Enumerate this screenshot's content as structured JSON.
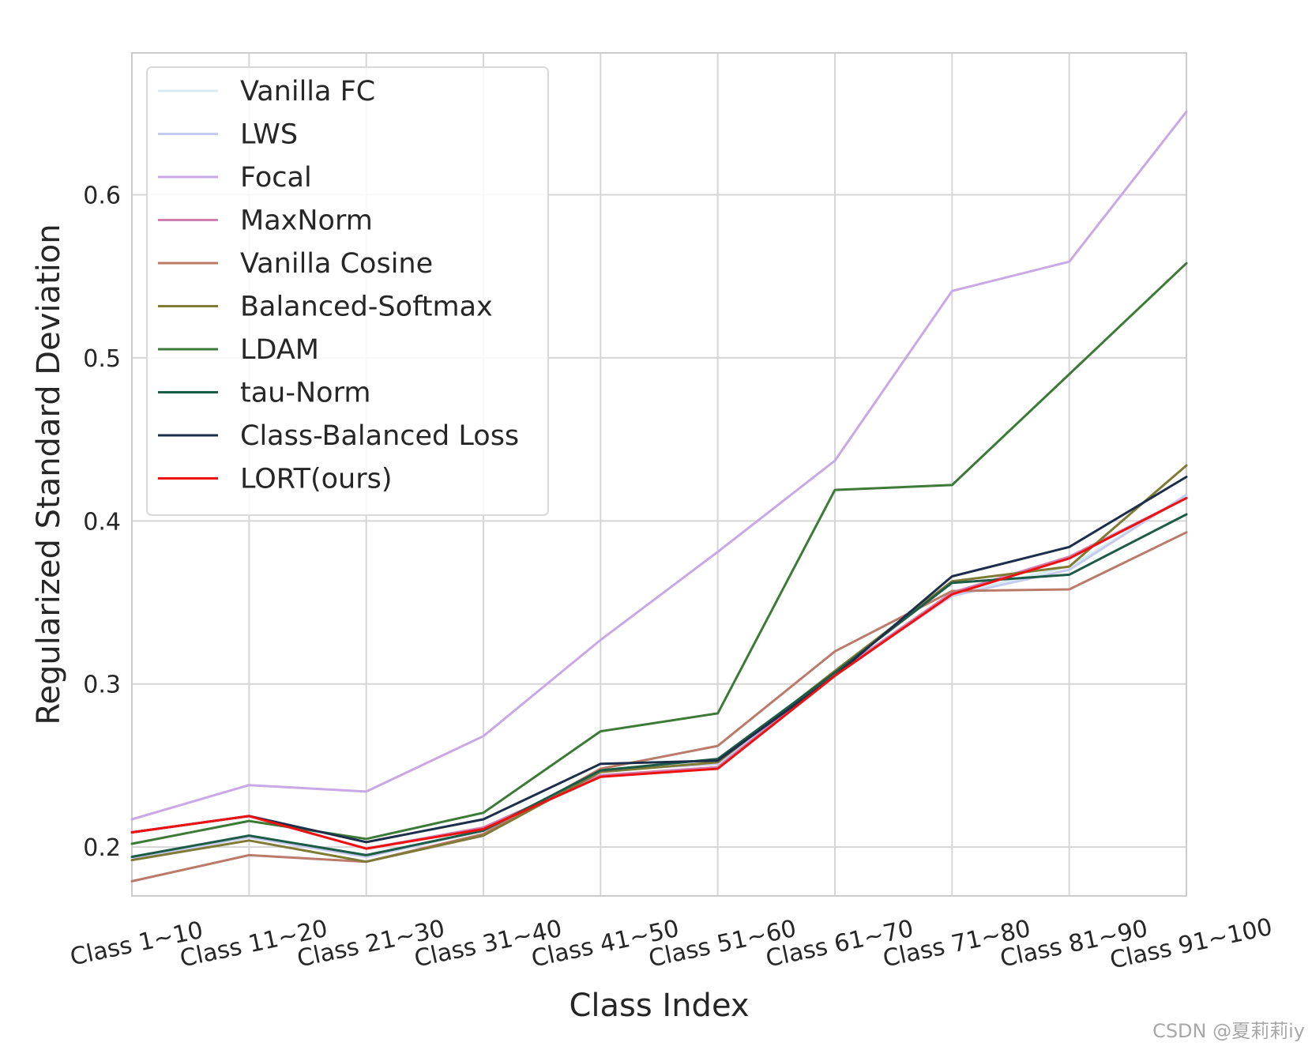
{
  "chart_data": {
    "type": "line",
    "title": "",
    "xlabel": "Class Index",
    "ylabel": "Regularized Standard Deviation",
    "categories": [
      "Class 1~10",
      "Class 11~20",
      "Class 21~30",
      "Class 31~40",
      "Class 41~50",
      "Class 51~60",
      "Class 61~70",
      "Class 71~80",
      "Class 81~90",
      "Class 91~100"
    ],
    "ylim": [
      0.17,
      0.687
    ],
    "yticks": [
      "0.2",
      "0.3",
      "0.4",
      "0.5",
      "0.6"
    ],
    "grid": true,
    "legend_position": "top-left",
    "series": [
      {
        "name": "Vanilla FC",
        "color": "#d6ecf0",
        "values": [
          0.193,
          0.206,
          0.195,
          0.21,
          0.247,
          0.252,
          0.307,
          0.355,
          0.372,
          0.415
        ]
      },
      {
        "name": "LWS",
        "color": "#c5cbf0",
        "values": [
          0.193,
          0.206,
          0.194,
          0.21,
          0.247,
          0.251,
          0.306,
          0.354,
          0.37,
          0.416
        ]
      },
      {
        "name": "Focal",
        "color": "#c9a8e6",
        "values": [
          0.217,
          0.238,
          0.234,
          0.268,
          0.327,
          0.381,
          0.437,
          0.541,
          0.559,
          0.651
        ]
      },
      {
        "name": "MaxNorm",
        "color": "#d080b0",
        "values": [
          0.209,
          0.219,
          0.199,
          0.212,
          0.244,
          0.249,
          0.306,
          0.356,
          0.378,
          0.414
        ]
      },
      {
        "name": "Vanilla Cosine",
        "color": "#bb7b6a",
        "values": [
          0.179,
          0.195,
          0.191,
          0.208,
          0.248,
          0.262,
          0.32,
          0.357,
          0.358,
          0.393
        ]
      },
      {
        "name": "Balanced-Softmax",
        "color": "#7f7a36",
        "values": [
          0.192,
          0.204,
          0.191,
          0.207,
          0.246,
          0.252,
          0.308,
          0.363,
          0.372,
          0.434
        ]
      },
      {
        "name": "LDAM",
        "color": "#3d7a38",
        "values": [
          0.202,
          0.216,
          0.205,
          0.221,
          0.271,
          0.282,
          0.419,
          0.422,
          0.49,
          0.558
        ]
      },
      {
        "name": "tau-Norm",
        "color": "#1c5c46",
        "values": [
          0.194,
          0.207,
          0.195,
          0.21,
          0.247,
          0.254,
          0.307,
          0.362,
          0.367,
          0.404
        ]
      },
      {
        "name": "Class-Balanced Loss",
        "color": "#1c2f4a",
        "values": [
          0.209,
          0.219,
          0.203,
          0.217,
          0.251,
          0.253,
          0.305,
          0.366,
          0.384,
          0.427
        ]
      },
      {
        "name": "LORT(ours)",
        "color": "#ee1111",
        "values": [
          0.209,
          0.219,
          0.199,
          0.211,
          0.243,
          0.248,
          0.305,
          0.355,
          0.377,
          0.414
        ]
      }
    ]
  },
  "watermark": "CSDN @夏莉莉iy"
}
